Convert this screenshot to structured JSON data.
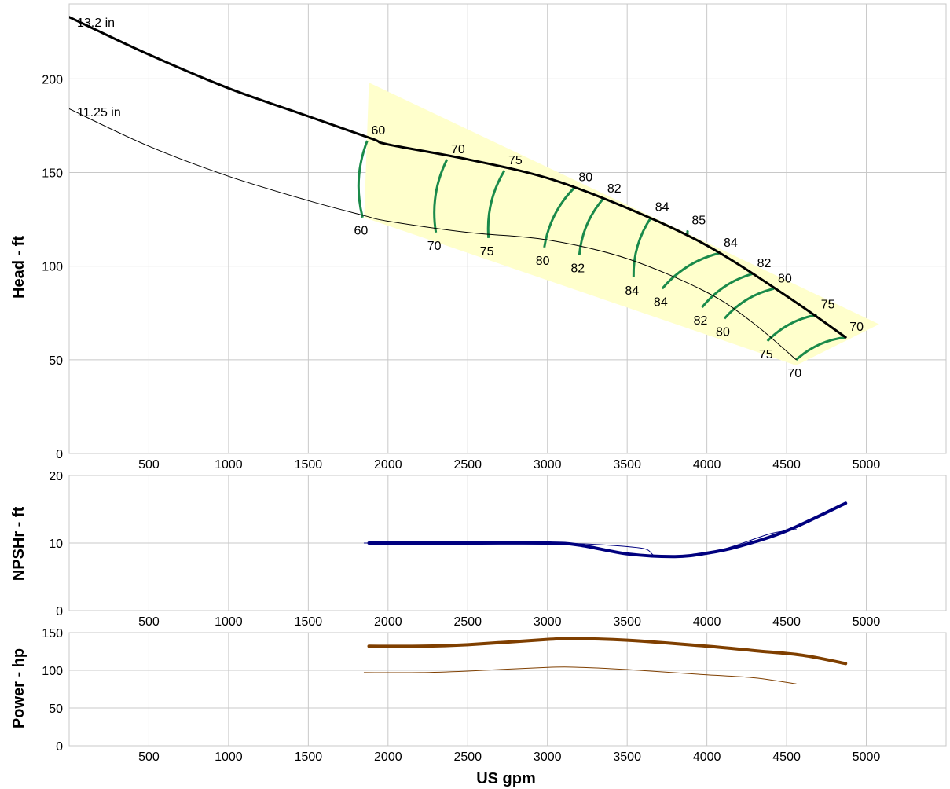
{
  "chart_data": {
    "type": "line",
    "title": "",
    "xlabel": "US gpm",
    "xlim": [
      0,
      5500
    ],
    "x_ticks": [
      500,
      1000,
      1500,
      2000,
      2500,
      3000,
      3500,
      4000,
      4500,
      5000
    ],
    "colors": {
      "grid": "#c8c8c8",
      "head": "#000000",
      "efficiency": "#1a8a4a",
      "region": "#ffffcc",
      "npsh": "#00007f",
      "power": "#7f3f00"
    },
    "panels": [
      {
        "id": "head",
        "ylabel": "Head - ft",
        "ylim": [
          0,
          240
        ],
        "y_ticks": [
          0,
          50,
          100,
          150,
          200
        ],
        "series": [
          {
            "name": "13.2 in",
            "line": "thick",
            "x": [
              0,
              500,
              1000,
              1500,
              1900,
              2000,
              2500,
              3000,
              3500,
              4000,
              4500,
              4870
            ],
            "y": [
              233,
              213,
              195,
              180,
              168,
              165,
              157,
              147,
              131,
              111,
              84,
              62
            ]
          },
          {
            "name": "11.25 in",
            "line": "thin",
            "x": [
              0,
              500,
              1000,
              1500,
              1850,
              2000,
              2500,
              3000,
              3500,
              4000,
              4300,
              4560
            ],
            "y": [
              184,
              164,
              148,
              135,
              127,
              124,
              118,
              114,
              104,
              86,
              69,
              50
            ]
          }
        ],
        "region": {
          "x": [
            1880,
            5080,
            4560,
            1850
          ],
          "y": [
            198,
            69,
            47,
            126
          ]
        },
        "efficiency_lines": [
          {
            "top": [
              1870,
              167
            ],
            "bottom": [
              1840,
              126
            ],
            "top_label": "60",
            "bottom_label": "60"
          },
          {
            "top": [
              2370,
              157
            ],
            "bottom": [
              2300,
              118
            ],
            "top_label": "70",
            "bottom_label": "70"
          },
          {
            "top": [
              2730,
              151
            ],
            "bottom": [
              2630,
              115
            ],
            "top_label": "75",
            "bottom_label": "75"
          },
          {
            "top": [
              3170,
              142
            ],
            "bottom": [
              2980,
              110
            ],
            "top_label": "80",
            "bottom_label": "80"
          },
          {
            "top": [
              3350,
              136
            ],
            "bottom": [
              3200,
              106
            ],
            "top_label": "82",
            "bottom_label": "82"
          },
          {
            "top": [
              3650,
              126
            ],
            "bottom": [
              3540,
              94
            ],
            "top_label": "84",
            "bottom_label": "84"
          },
          {
            "top": [
              3880,
              119
            ],
            "bottom": [
              3880,
              117
            ],
            "top_label": "85",
            "bottom_label": ""
          },
          {
            "top": [
              4080,
              107
            ],
            "bottom": [
              3720,
              88
            ],
            "top_label": "84",
            "bottom_label": "84"
          },
          {
            "top": [
              4290,
              96
            ],
            "bottom": [
              3970,
              78
            ],
            "top_label": "82",
            "bottom_label": "82"
          },
          {
            "top": [
              4420,
              88
            ],
            "bottom": [
              4110,
              72
            ],
            "top_label": "80",
            "bottom_label": "80"
          },
          {
            "top": [
              4690,
              74
            ],
            "bottom": [
              4380,
              60
            ],
            "top_label": "75",
            "bottom_label": "75"
          },
          {
            "top": [
              4870,
              62
            ],
            "bottom": [
              4560,
              50
            ],
            "top_label": "70",
            "bottom_label": "70"
          }
        ]
      },
      {
        "id": "npsh",
        "ylabel": "NPSHr - ft",
        "ylim": [
          0,
          20
        ],
        "y_ticks": [
          0,
          10,
          20
        ],
        "series": [
          {
            "name": "13.2 in",
            "line": "thick",
            "x": [
              1880,
              2500,
              3000,
              3200,
              3500,
              3800,
              4000,
              4200,
              4500,
              4870
            ],
            "y": [
              10,
              10,
              10,
              9.7,
              8.4,
              8.0,
              8.5,
              9.5,
              11.8,
              15.9
            ]
          },
          {
            "name": "11.25 in",
            "line": "thin",
            "x": [
              1850,
              2500,
              3000,
              3300,
              3600,
              3700,
              4000,
              4200,
              4400,
              4560
            ],
            "y": [
              10,
              10,
              10,
              9.8,
              9.2,
              8.0,
              8.5,
              9.8,
              11.4,
              12.0
            ]
          }
        ]
      },
      {
        "id": "power",
        "ylabel": "Power - hp",
        "ylim": [
          0,
          150
        ],
        "y_ticks": [
          0,
          50,
          100,
          150
        ],
        "series": [
          {
            "name": "13.2 in",
            "line": "thick",
            "x": [
              1880,
              2200,
              2500,
              3000,
              3200,
              3500,
              4000,
              4300,
              4600,
              4870
            ],
            "y": [
              132,
              132,
              134,
              141,
              142,
              140,
              132,
              126,
              120,
              109
            ]
          },
          {
            "name": "11.25 in",
            "line": "thin",
            "x": [
              1850,
              2200,
              2500,
              3000,
              3200,
              3500,
              4000,
              4300,
              4560
            ],
            "y": [
              97,
              97,
              99,
              104,
              104,
              101,
              94,
              90,
              82
            ]
          }
        ]
      }
    ]
  }
}
